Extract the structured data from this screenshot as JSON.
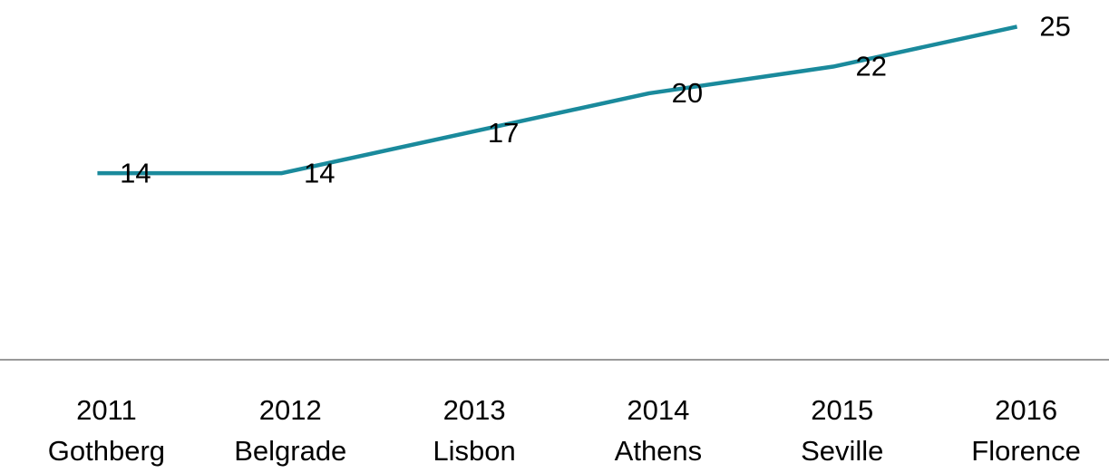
{
  "chart_data": {
    "type": "line",
    "categories": [
      [
        "2011",
        "Gothberg"
      ],
      [
        "2012",
        "Belgrade"
      ],
      [
        "2013",
        "Lisbon"
      ],
      [
        "2014",
        "Athens"
      ],
      [
        "2015",
        "Seville"
      ],
      [
        "2016",
        "Florence"
      ]
    ],
    "values": [
      14,
      14,
      17,
      20,
      22,
      25
    ],
    "color": "#1a8a9c",
    "ylim": [
      0,
      27
    ]
  }
}
